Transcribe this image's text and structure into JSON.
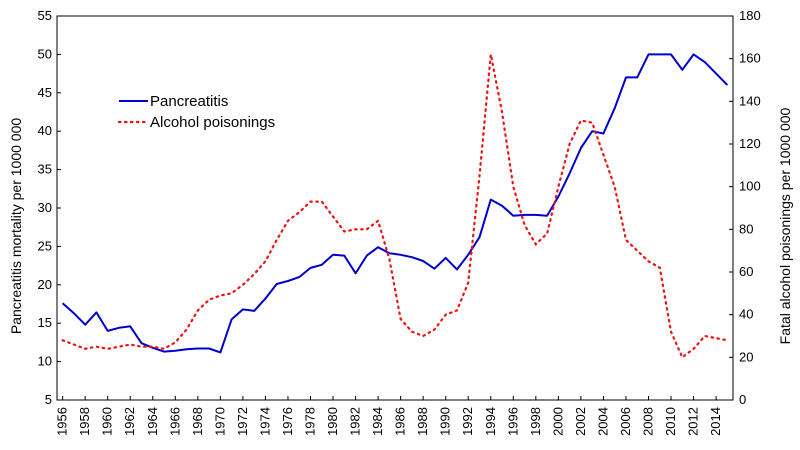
{
  "chart_data": {
    "type": "line",
    "title": "",
    "xlabel": "",
    "ylabel_left": "Pancreatitis mortality per 1000 000",
    "ylabel_right": "Fatal alcohol poisonings per 1000 000",
    "xlim": [
      1955.5,
      2015.5
    ],
    "ylim_left": [
      5,
      55
    ],
    "ylim_right": [
      0,
      180
    ],
    "x_ticks": [
      1956,
      1958,
      1960,
      1962,
      1964,
      1966,
      1968,
      1970,
      1972,
      1974,
      1976,
      1978,
      1980,
      1982,
      1984,
      1986,
      1988,
      1990,
      1992,
      1994,
      1996,
      1998,
      2000,
      2002,
      2004,
      2006,
      2008,
      2010,
      2012,
      2014
    ],
    "y_ticks_left": [
      5,
      10,
      15,
      20,
      25,
      30,
      35,
      40,
      45,
      50,
      55
    ],
    "y_ticks_right": [
      0,
      20,
      40,
      60,
      80,
      100,
      120,
      140,
      160,
      180
    ],
    "grid": false,
    "legend_position": "upper-left",
    "series": [
      {
        "name": "Pancreatitis",
        "axis": "left",
        "color": "#0000cc",
        "style": "solid",
        "x": [
          1956,
          1957,
          1958,
          1959,
          1960,
          1961,
          1962,
          1963,
          1964,
          1965,
          1966,
          1967,
          1968,
          1969,
          1970,
          1971,
          1972,
          1973,
          1974,
          1975,
          1976,
          1977,
          1978,
          1979,
          1980,
          1981,
          1982,
          1983,
          1984,
          1985,
          1986,
          1987,
          1988,
          1989,
          1990,
          1991,
          1992,
          1993,
          1994,
          1995,
          1996,
          1997,
          1998,
          1999,
          2000,
          2001,
          2002,
          2003,
          2004,
          2005,
          2006,
          2007,
          2008,
          2009,
          2010,
          2011,
          2012,
          2013,
          2014,
          2015
        ],
        "values": [
          17.6,
          16.3,
          14.8,
          16.4,
          14.0,
          14.4,
          14.6,
          12.4,
          11.8,
          11.3,
          11.4,
          11.6,
          11.7,
          11.7,
          11.2,
          15.5,
          16.8,
          16.6,
          18.2,
          20.1,
          20.5,
          21.0,
          22.2,
          22.6,
          23.9,
          23.8,
          21.5,
          23.8,
          24.9,
          24.1,
          23.9,
          23.6,
          23.1,
          22.1,
          23.5,
          22.0,
          23.9,
          26.2,
          31.1,
          30.3,
          29.0,
          29.1,
          29.1,
          29.0,
          31.5,
          34.5,
          37.8,
          40.0,
          39.7,
          43.0,
          47.0,
          47.0,
          50.0,
          50.0,
          50.0,
          48.0,
          50.0,
          49.0,
          47.5,
          46.0
        ]
      },
      {
        "name": "Alcohol poisonings",
        "axis": "right",
        "color": "#ee1111",
        "style": "dotted",
        "x": [
          1956,
          1957,
          1958,
          1959,
          1960,
          1961,
          1962,
          1963,
          1964,
          1965,
          1966,
          1967,
          1968,
          1969,
          1970,
          1971,
          1972,
          1973,
          1974,
          1975,
          1976,
          1977,
          1978,
          1979,
          1980,
          1981,
          1982,
          1983,
          1984,
          1985,
          1986,
          1987,
          1988,
          1989,
          1990,
          1991,
          1992,
          1993,
          1994,
          1995,
          1996,
          1997,
          1998,
          1999,
          2000,
          2001,
          2002,
          2003,
          2004,
          2005,
          2006,
          2007,
          2008,
          2009,
          2010,
          2011,
          2012,
          2013,
          2014,
          2015
        ],
        "values": [
          28,
          26,
          24,
          25,
          24,
          25,
          26,
          25,
          25,
          24,
          27,
          33,
          42,
          47,
          49,
          50,
          54,
          59,
          65,
          75,
          84,
          88,
          93,
          93,
          86,
          79,
          80,
          80,
          84,
          66,
          38,
          32,
          30,
          33,
          40,
          42,
          55,
          105,
          162,
          135,
          100,
          82,
          73,
          78,
          100,
          120,
          131,
          130,
          115,
          100,
          75,
          70,
          65,
          62,
          32,
          20,
          24,
          30,
          29,
          28
        ]
      }
    ]
  }
}
